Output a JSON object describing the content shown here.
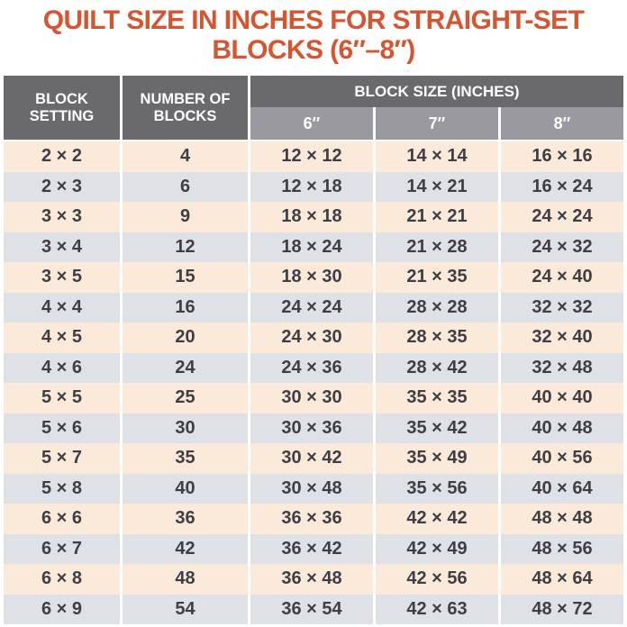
{
  "title": {
    "line1": "QUILT SIZE IN INCHES FOR STRAIGHT-SET",
    "line2": "BLOCKS (6″–8″)"
  },
  "chart_data": {
    "type": "table",
    "title": "QUILT SIZE IN INCHES FOR STRAIGHT-SET BLOCKS (6″–8″)",
    "header": {
      "block_setting": "BLOCK\nSETTING",
      "number_of_blocks": "NUMBER OF\nBLOCKS",
      "block_size_group": "BLOCK SIZE (INCHES)",
      "sizes": [
        "6″",
        "7″",
        "8″"
      ]
    },
    "rows": [
      {
        "setting": "2 × 2",
        "blocks": "4",
        "size6": "12 × 12",
        "size7": "14 × 14",
        "size8": "16 × 16"
      },
      {
        "setting": "2 × 3",
        "blocks": "6",
        "size6": "12 × 18",
        "size7": "14 × 21",
        "size8": "16 × 24"
      },
      {
        "setting": "3 × 3",
        "blocks": "9",
        "size6": "18 × 18",
        "size7": "21 × 21",
        "size8": "24 × 24"
      },
      {
        "setting": "3 × 4",
        "blocks": "12",
        "size6": "18 × 24",
        "size7": "21 × 28",
        "size8": "24 × 32"
      },
      {
        "setting": "3 × 5",
        "blocks": "15",
        "size6": "18 × 30",
        "size7": "21 × 35",
        "size8": "24 × 40"
      },
      {
        "setting": "4 × 4",
        "blocks": "16",
        "size6": "24 × 24",
        "size7": "28 × 28",
        "size8": "32 × 32"
      },
      {
        "setting": "4 × 5",
        "blocks": "20",
        "size6": "24 × 30",
        "size7": "28 × 35",
        "size8": "32 × 40"
      },
      {
        "setting": "4 × 6",
        "blocks": "24",
        "size6": "24 × 36",
        "size7": "28 × 42",
        "size8": "32 × 48"
      },
      {
        "setting": "5 × 5",
        "blocks": "25",
        "size6": "30 × 30",
        "size7": "35 × 35",
        "size8": "40 × 40"
      },
      {
        "setting": "5 × 6",
        "blocks": "30",
        "size6": "30 × 36",
        "size7": "35 × 42",
        "size8": "40 × 48"
      },
      {
        "setting": "5 × 7",
        "blocks": "35",
        "size6": "30 × 42",
        "size7": "35 × 49",
        "size8": "40 × 56"
      },
      {
        "setting": "5 × 8",
        "blocks": "40",
        "size6": "30 × 48",
        "size7": "35 × 56",
        "size8": "40 × 64"
      },
      {
        "setting": "6 × 6",
        "blocks": "36",
        "size6": "36 × 36",
        "size7": "42 × 42",
        "size8": "48 × 48"
      },
      {
        "setting": "6 × 7",
        "blocks": "42",
        "size6": "36 × 42",
        "size7": "42 × 49",
        "size8": "48 × 56"
      },
      {
        "setting": "6 × 8",
        "blocks": "48",
        "size6": "36 × 48",
        "size7": "42 × 56",
        "size8": "48 × 64"
      },
      {
        "setting": "6 × 9",
        "blocks": "54",
        "size6": "36 × 54",
        "size7": "42 × 63",
        "size8": "48 × 72"
      }
    ],
    "layout": {
      "legend": "none",
      "grid": "white column dividers, two-tier header",
      "striping_order": "odd rows peach, even rows blue-gray"
    }
  },
  "colors": {
    "title_text": "#d8542e",
    "header_bg": "#6a696e",
    "subheader_bg": "#9a999f",
    "header_text": "#ffffff",
    "row_odd_bg": "#fbe9d9",
    "row_even_bg": "#dee1e6",
    "body_text": "#3f3e44",
    "page_bg": "#ffffff"
  }
}
